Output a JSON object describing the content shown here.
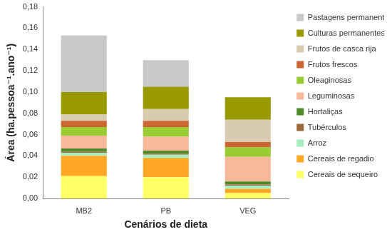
{
  "chart_data": {
    "type": "bar",
    "stacked": true,
    "legend": "right",
    "grid": false,
    "x_label": "Cenários de dieta",
    "y_label": "Área (ha.pessoa⁻¹.ano⁻¹)",
    "categories": [
      "MB2",
      "PB",
      "VEG"
    ],
    "ylim": [
      0,
      0.18
    ],
    "yticks": [
      {
        "value": 0,
        "label": "0,00"
      },
      {
        "value": 0.02,
        "label": "0,02"
      },
      {
        "value": 0.04,
        "label": "0,04"
      },
      {
        "value": 0.06,
        "label": "0,06"
      },
      {
        "value": 0.08,
        "label": "0,08"
      },
      {
        "value": 0.1,
        "label": "0,10"
      },
      {
        "value": 0.12,
        "label": "0,12"
      },
      {
        "value": 0.14,
        "label": "0,14"
      },
      {
        "value": 0.16,
        "label": "0,16"
      },
      {
        "value": 0.18,
        "label": "0,18"
      }
    ],
    "series": [
      {
        "name": "Cereais de sequeiro",
        "color": "#ffff66",
        "values": [
          0.021,
          0.02,
          0.005
        ]
      },
      {
        "name": "Cereais de regadio",
        "color": "#ffa826",
        "values": [
          0.019,
          0.018,
          0.004
        ]
      },
      {
        "name": "Arroz",
        "color": "#a8eec0",
        "values": [
          0.003,
          0.003,
          0.003
        ]
      },
      {
        "name": "Tubérculos",
        "color": "#9c6a3c",
        "values": [
          0.001,
          0.001,
          0.001
        ]
      },
      {
        "name": "Hortaliças",
        "color": "#4f8a2b",
        "values": [
          0.003,
          0.003,
          0.003
        ]
      },
      {
        "name": "Leguminosas",
        "color": "#f8b89a",
        "values": [
          0.012,
          0.013,
          0.023
        ]
      },
      {
        "name": "Oleaginosas",
        "color": "#99cc33",
        "values": [
          0.008,
          0.009,
          0.009
        ]
      },
      {
        "name": "Frutos frescos",
        "color": "#cc6633",
        "values": [
          0.006,
          0.006,
          0.005
        ]
      },
      {
        "name": "Frutos de casca rija",
        "color": "#d9cbb0",
        "values": [
          0.006,
          0.011,
          0.021
        ]
      },
      {
        "name": "Culturas permanentes",
        "color": "#999900",
        "values": [
          0.021,
          0.021,
          0.021
        ]
      },
      {
        "name": "Pastagens permanentes",
        "color": "#c8c8c8",
        "values": [
          0.053,
          0.025,
          0
        ]
      }
    ]
  }
}
